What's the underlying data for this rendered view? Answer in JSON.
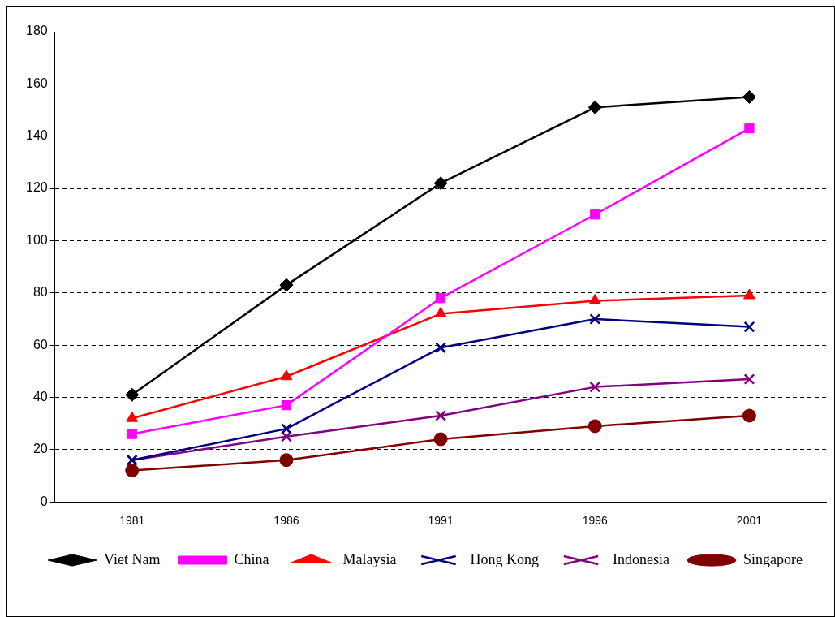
{
  "chart_data": {
    "type": "line",
    "categories": [
      "1981",
      "1986",
      "1991",
      "1996",
      "2001"
    ],
    "series": [
      {
        "name": "Viet Nam",
        "color": "#000000",
        "marker": "diamond",
        "values": [
          41,
          83,
          122,
          151,
          155
        ]
      },
      {
        "name": "China",
        "color": "#ff00ff",
        "marker": "square",
        "values": [
          26,
          37,
          78,
          110,
          143
        ]
      },
      {
        "name": "Malaysia",
        "color": "#ff0000",
        "marker": "triangle",
        "values": [
          32,
          48,
          72,
          77,
          79
        ]
      },
      {
        "name": "Hong Kong",
        "color": "#000080",
        "marker": "cross",
        "values": [
          16,
          28,
          59,
          70,
          67
        ]
      },
      {
        "name": "Indonesia",
        "color": "#800080",
        "marker": "cross",
        "values": [
          16,
          25,
          33,
          44,
          47
        ]
      },
      {
        "name": "Singapore",
        "color": "#800000",
        "marker": "circle",
        "values": [
          12,
          16,
          24,
          29,
          33
        ]
      }
    ],
    "ylim": [
      0,
      180
    ],
    "yticks": [
      0,
      20,
      40,
      60,
      80,
      100,
      120,
      140,
      160,
      180
    ],
    "grid": "y",
    "legend": "bottom",
    "line_style": "solid"
  }
}
